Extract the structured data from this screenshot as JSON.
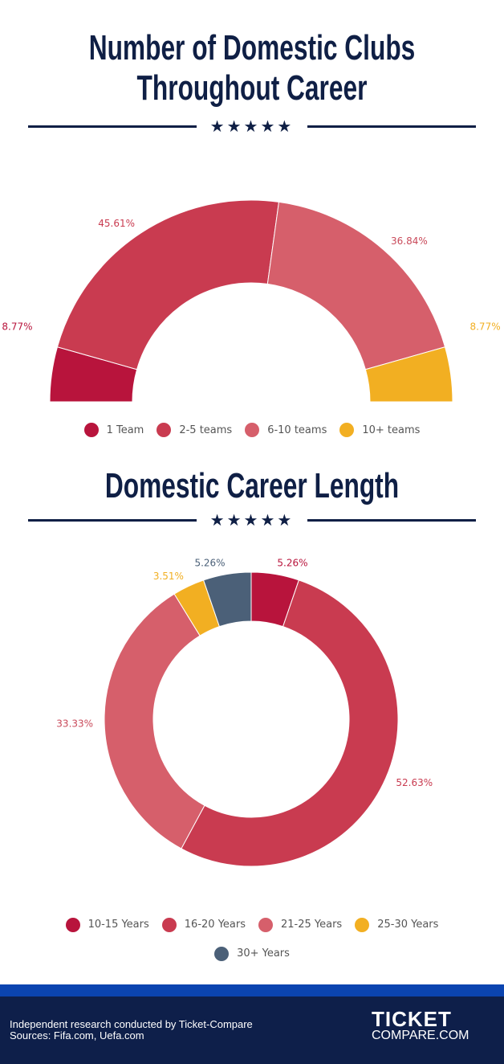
{
  "chart_data": [
    {
      "type": "pie",
      "variant": "semi-donut",
      "title": "Number of Domestic Clubs Throughout Career",
      "categories": [
        "1 Team",
        "2-5 teams",
        "6-10 teams",
        "10+ teams"
      ],
      "values": [
        8.77,
        45.61,
        36.84,
        8.77
      ],
      "labels": [
        "8.77%",
        "45.61%",
        "36.84%",
        "8.77%"
      ],
      "colors": [
        "#b8143c",
        "#c93b50",
        "#d65f6b",
        "#f2af22"
      ],
      "legend": "bottom"
    },
    {
      "type": "pie",
      "variant": "donut",
      "title": "Domestic Career Length",
      "categories": [
        "10-15 Years",
        "16-20 Years",
        "21-25 Years",
        "25-30 Years",
        "30+ Years"
      ],
      "values": [
        5.26,
        52.63,
        33.33,
        3.51,
        5.26
      ],
      "labels": [
        "5.26%",
        "52.63%",
        "33.33%",
        "3.51%",
        "5.26%"
      ],
      "colors": [
        "#b8143c",
        "#c93b50",
        "#d65f6b",
        "#f2af22",
        "#4b6078"
      ],
      "legend": "bottom"
    }
  ],
  "decoration": {
    "stars": "★★★★★"
  },
  "footer": {
    "line1": "Independent research conducted by Ticket-Compare",
    "line2": "Sources: Fifa.com, Uefa.com",
    "logo_top": "TICKET",
    "logo_bottom": "COMPARE.COM"
  }
}
